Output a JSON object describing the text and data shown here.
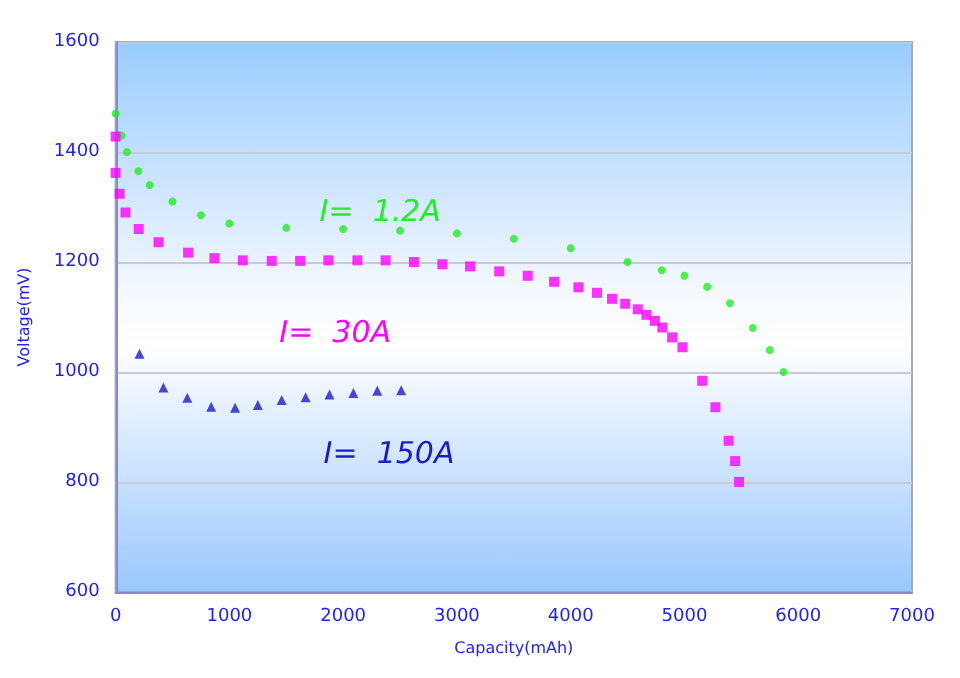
{
  "chart_data": {
    "type": "scatter",
    "xlabel": "Capacity(mAh)",
    "ylabel": "Voltage(mV)",
    "xlim": [
      0,
      7000
    ],
    "xticks": [
      0,
      1000,
      2000,
      3000,
      4000,
      5000,
      6000,
      7000
    ],
    "ylim": [
      600,
      1600
    ],
    "yticks": [
      600,
      800,
      1000,
      1200,
      1400,
      1600
    ],
    "grid": "y",
    "legend": false,
    "series": [
      {
        "name": "I=  1.2A",
        "color": "#22ee22",
        "marker": "circle",
        "x": [
          0,
          50,
          100,
          200,
          300,
          500,
          750,
          1000,
          1500,
          2000,
          2500,
          3000,
          3500,
          4000,
          4500,
          4800,
          5000,
          5200,
          5400,
          5600,
          5750,
          5870
        ],
        "values": [
          1470,
          1430,
          1400,
          1365,
          1340,
          1310,
          1285,
          1270,
          1262,
          1260,
          1257,
          1252,
          1242,
          1225,
          1200,
          1185,
          1175,
          1155,
          1125,
          1080,
          1040,
          1000
        ]
      },
      {
        "name": "I=  30A",
        "color": "#ff00ff",
        "marker": "square",
        "x": [
          0,
          0,
          35,
          87,
          203,
          377,
          637,
          868,
          1118,
          1372,
          1622,
          1870,
          2125,
          2373,
          2622,
          2872,
          3115,
          3372,
          3622,
          3854,
          4068,
          4231,
          4363,
          4479,
          4589,
          4665,
          4740,
          4805,
          4891,
          4982,
          5156,
          5272,
          5388,
          5445,
          5480
        ],
        "values": [
          1428,
          1362,
          1324,
          1290,
          1260,
          1236,
          1217,
          1207,
          1203,
          1202,
          1202,
          1203,
          1203,
          1203,
          1200,
          1196,
          1192,
          1183,
          1175,
          1164,
          1154,
          1144,
          1133,
          1124,
          1114,
          1104,
          1093,
          1081,
          1063,
          1045,
          984,
          936,
          875,
          838,
          800
        ]
      },
      {
        "name": "I=  150A",
        "color": "#1a1acc",
        "marker": "triangle",
        "x": [
          210,
          420,
          630,
          840,
          1050,
          1250,
          1460,
          1670,
          1880,
          2090,
          2300,
          2510
        ],
        "values": [
          1033,
          972,
          953,
          937,
          935,
          940,
          949,
          954,
          959,
          962,
          966,
          967
        ]
      }
    ]
  }
}
